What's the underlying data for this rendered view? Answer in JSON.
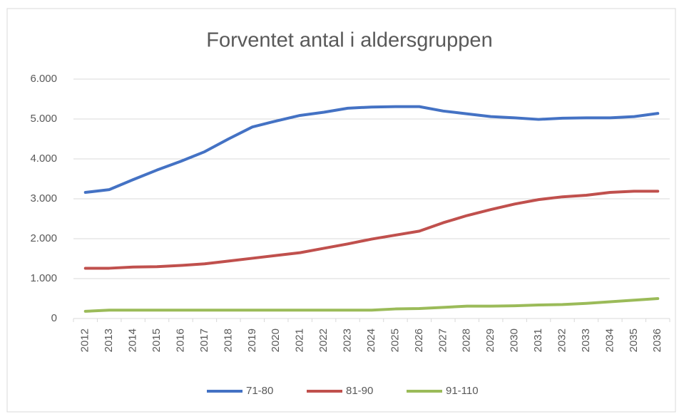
{
  "chart_data": {
    "type": "line",
    "title": "Forventet antal i aldersgruppen",
    "categories": [
      "2012",
      "2013",
      "2014",
      "2015",
      "2016",
      "2017",
      "2018",
      "2019",
      "2020",
      "2021",
      "2022",
      "2023",
      "2024",
      "2025",
      "2026",
      "2027",
      "2028",
      "2029",
      "2030",
      "2031",
      "2032",
      "2033",
      "2034",
      "2035",
      "2036"
    ],
    "series": [
      {
        "name": "71-80",
        "color": "#4472c4",
        "values": [
          3160,
          3230,
          3480,
          3720,
          3940,
          4180,
          4500,
          4800,
          4950,
          5090,
          5170,
          5270,
          5300,
          5310,
          5310,
          5200,
          5130,
          5060,
          5030,
          4990,
          5020,
          5030,
          5030,
          5060,
          5140
        ]
      },
      {
        "name": "81-90",
        "color": "#c0504d",
        "values": [
          1260,
          1260,
          1290,
          1300,
          1330,
          1370,
          1440,
          1510,
          1580,
          1650,
          1760,
          1870,
          1990,
          2090,
          2190,
          2400,
          2580,
          2730,
          2870,
          2980,
          3050,
          3090,
          3160,
          3190,
          3190
        ]
      },
      {
        "name": "91-110",
        "color": "#9bbb59",
        "values": [
          180,
          210,
          210,
          210,
          210,
          210,
          210,
          210,
          210,
          210,
          210,
          210,
          210,
          240,
          250,
          280,
          310,
          310,
          320,
          340,
          350,
          380,
          420,
          460,
          500
        ]
      }
    ],
    "ylim": [
      0,
      6000
    ],
    "yticks": [
      0,
      {
        "value": 1000,
        "label": "1.000"
      },
      {
        "value": 2000,
        "label": "2.000"
      },
      {
        "value": 3000,
        "label": "3.000"
      },
      {
        "value": 4000,
        "label": "4.000"
      },
      {
        "value": 5000,
        "label": "5.000"
      },
      {
        "value": 6000,
        "label": "6.000"
      }
    ],
    "grid": true,
    "legend": "bottom"
  }
}
